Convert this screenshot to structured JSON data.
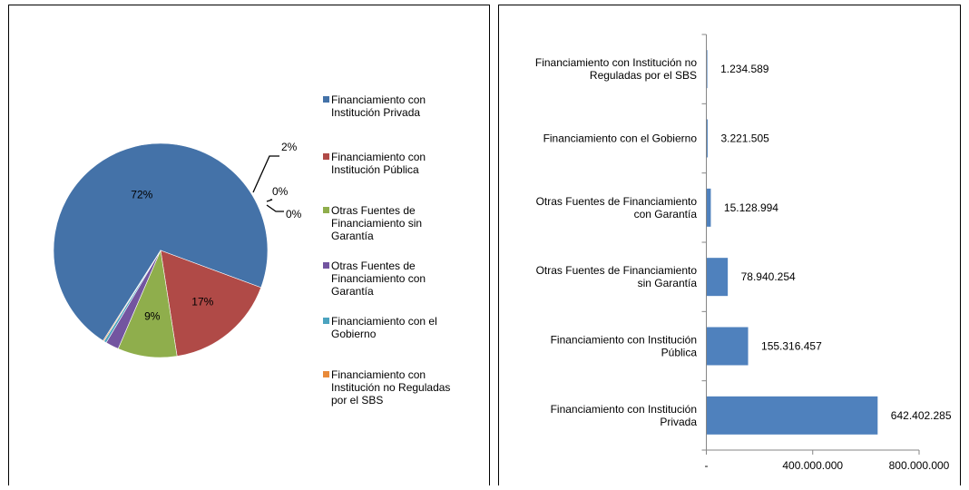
{
  "chart_data": [
    {
      "type": "pie",
      "title": "",
      "slices": [
        {
          "label": [
            "Financiamiento con",
            "Institución Privada"
          ],
          "value": 72,
          "display": "72%",
          "color": "#4472A8"
        },
        {
          "label": [
            "Financiamiento con",
            "Institución Pública"
          ],
          "value": 17,
          "display": "17%",
          "color": "#B04A47"
        },
        {
          "label": [
            "Otras Fuentes de",
            "Financiamiento sin",
            "Garantía"
          ],
          "value": 9,
          "display": "9%",
          "color": "#8FAE4C"
        },
        {
          "label": [
            "Otras Fuentes de",
            "Financiamiento con",
            "Garantía"
          ],
          "value": 2,
          "display": "2%",
          "color": "#7355A0"
        },
        {
          "label": [
            "Financiamiento con el",
            "Gobierno"
          ],
          "value": 0.4,
          "display": "0%",
          "color": "#4BA3BF"
        },
        {
          "label": [
            "Financiamiento con",
            "Institución no Reguladas",
            "por el SBS"
          ],
          "value": 0.15,
          "display": "0%",
          "color": "#E88A3A"
        }
      ],
      "legend_position": "right"
    },
    {
      "type": "bar",
      "orientation": "horizontal",
      "title": "",
      "categories": [
        [
          "Financiamiento con Institución no",
          "Reguladas por el SBS"
        ],
        [
          "Financiamiento con el Gobierno"
        ],
        [
          "Otras Fuentes de Financiamiento",
          "con Garantía"
        ],
        [
          "Otras Fuentes de Financiamiento",
          "sin Garantía"
        ],
        [
          "Financiamiento con Institución",
          "Pública"
        ],
        [
          "Financiamiento con Institución",
          "Privada"
        ]
      ],
      "values": [
        1234589,
        3221505,
        15128994,
        78940254,
        155316457,
        642402285
      ],
      "value_labels": [
        "1.234.589",
        "3.221.505",
        "15.128.994",
        "78.940.254",
        "155.316.457",
        "642.402.285"
      ],
      "x_ticks": [
        0,
        400000000,
        800000000
      ],
      "x_tick_labels": [
        "-",
        "400.000.000",
        "800.000.000"
      ],
      "xlim": [
        0,
        800000000
      ],
      "bar_color": "#4F81BD",
      "grid": false
    }
  ]
}
